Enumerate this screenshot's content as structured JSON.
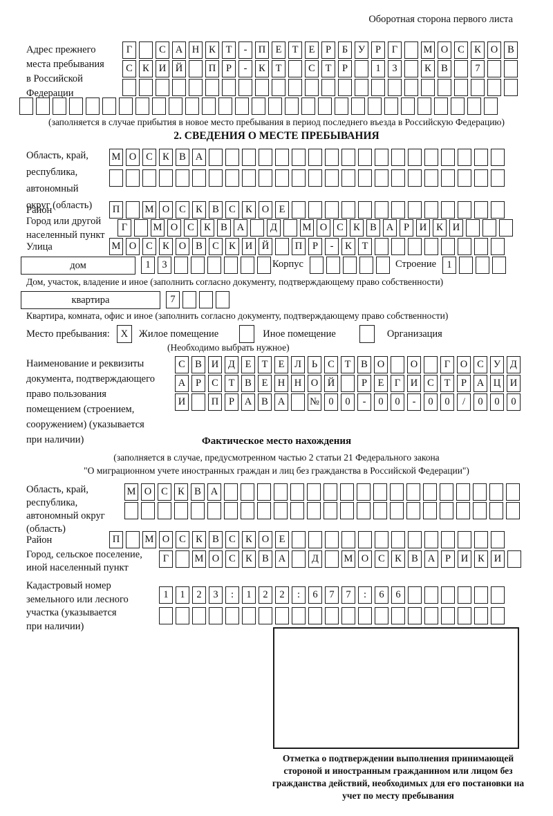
{
  "header": {
    "note": "Оборотная сторона первого листа"
  },
  "prev_address": {
    "label_lines": [
      "Адрес прежнего",
      "места пребывания",
      "в Российской",
      "Федерации"
    ],
    "rows": [
      {
        "text": "Г САНКТ-ПЕТЕРБУРГ МОСКОВ",
        "len": 24
      },
      {
        "text": "СКИЙ ПР-КТ СТР 13 КВ 7",
        "len": 24
      },
      {
        "text": "",
        "len": 24
      }
    ],
    "extra_row": {
      "text": "",
      "len": 29
    },
    "caption": "(заполняется в случае прибытия в новое место пребывания в период последнего въезда в Российскую Федерацию)"
  },
  "section2": {
    "title": "2. СВЕДЕНИЯ О МЕСТЕ ПРЕБЫВАНИЯ",
    "oblast": {
      "label_lines": [
        "Область, край,",
        "республика,",
        "автономный",
        "округ (область)"
      ],
      "rows": [
        {
          "text": "МОСКВА",
          "len": 24
        },
        {
          "text": "",
          "len": 24
        }
      ]
    },
    "raion": {
      "label": "Район",
      "row": {
        "text": "П МОСКВСКОЕ",
        "len": 24
      }
    },
    "gorod": {
      "label_lines": [
        "Город или другой",
        "населенный пункт"
      ],
      "row": {
        "text": "Г МОСКВА Д МОСКВАРИКИ",
        "len": 24
      }
    },
    "ulitsa": {
      "label": "Улица",
      "row": {
        "text": "МОСКОВСКИЙ ПР-КТ",
        "len": 24
      }
    },
    "dom": {
      "box_label": "дом",
      "row": {
        "text": "13",
        "len": 8
      },
      "korpus_label": "Корпус",
      "korpus_row": {
        "text": "",
        "len": 5
      },
      "stroenie_label": "Строение",
      "stroenie_row": {
        "text": "1",
        "len": 4
      },
      "caption": "Дом, участок, владение и иное (заполнить согласно документу, подтверждающему право собственности)"
    },
    "kvartira": {
      "box_label": "квартира",
      "row": {
        "text": "7",
        "len": 4
      },
      "caption": "Квартира, комната, офис и иное (заполнить согласно документу, подтверждающему право собственности)"
    },
    "mesto": {
      "label": "Место пребывания:",
      "options": [
        {
          "label": "Жилое помещение",
          "mark": "X"
        },
        {
          "label": "Иное помещение",
          "mark": ""
        },
        {
          "label": "Организация",
          "mark": ""
        }
      ],
      "note": "(Необходимо выбрать нужное)"
    },
    "doc": {
      "label_lines": [
        "Наименование и реквизиты",
        "документа, подтверждающего",
        "право пользования",
        "помещением (строением,",
        "сооружением) (указывается",
        "при наличии)"
      ],
      "rows": [
        {
          "text": "СВИДЕТЕЛЬСТВО О ГОСУД",
          "len": 21
        },
        {
          "text": "АРСТВЕННОЙ РЕГИСТРАЦИ",
          "len": 21
        },
        {
          "text": "И ПРАВА №00-00-00/000",
          "len": 21
        }
      ]
    }
  },
  "fact": {
    "title": "Фактическое место нахождения",
    "caption_lines": [
      "(заполняется в случае, предусмотренном частью 2 статьи 21 Федерального закона",
      "\"О миграционном учете иностранных граждан и лиц без гражданства в Российской Федерации\")"
    ],
    "oblast": {
      "label_lines": [
        "Область, край,",
        "республика,",
        "автономный округ",
        "(область)"
      ],
      "rows": [
        {
          "text": "МОСКВА",
          "len": 24
        },
        {
          "text": "",
          "len": 24
        }
      ]
    },
    "raion": {
      "label": "Район",
      "row": {
        "text": "П МОСКВСКОЕ",
        "len": 24
      }
    },
    "gorod": {
      "label_lines": [
        "Город, сельское поселение,",
        "иной населенный пункт"
      ],
      "row": {
        "text": "Г МОСКВА Д МОСКВАРИКИ",
        "len": 22
      }
    },
    "kadastr": {
      "label_lines": [
        "Кадастровый номер",
        "земельного или лесного",
        "участка (указывается",
        "при наличии)"
      ],
      "rows": [
        {
          "text": "1123:122:677:66",
          "len": 21
        },
        {
          "text": "",
          "len": 21
        }
      ]
    },
    "stamp_caption": "Отметка о подтверждении выполнения принимающей стороной и иностранным гражданином или лицом без гражданства действий, необходимых для его постановки на учет по месту пребывания"
  }
}
